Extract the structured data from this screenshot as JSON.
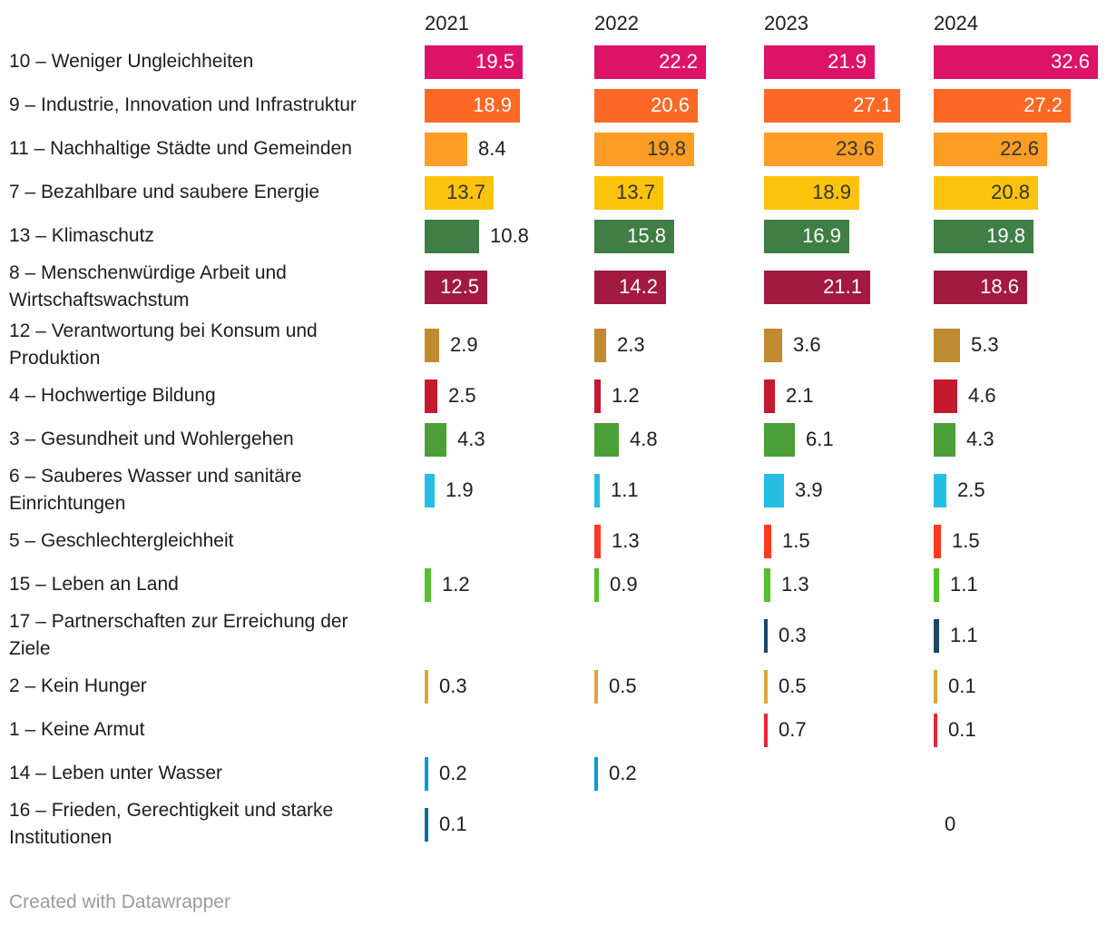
{
  "chart_data": {
    "type": "bar",
    "orientation": "horizontal",
    "title": "",
    "columns": [
      "2021",
      "2022",
      "2023",
      "2024"
    ],
    "value_axis_max": 33,
    "grid": false,
    "legend": "none",
    "rows": [
      {
        "label": "10 – Weniger Ungleichheiten",
        "color": "#DD1367",
        "inside_label_color": "#ffffff",
        "values": [
          19.5,
          22.2,
          21.9,
          32.6
        ]
      },
      {
        "label": "9 – Industrie, Innovation und Infrastruktur",
        "color": "#FD6925",
        "inside_label_color": "#ffffff",
        "values": [
          18.9,
          20.6,
          27.1,
          27.2
        ]
      },
      {
        "label": "11 – Nachhaltige Städte und Gemeinden",
        "color": "#FD9D24",
        "inside_label_color": "#333333",
        "values": [
          8.4,
          19.8,
          23.6,
          22.6
        ]
      },
      {
        "label": "7 – Bezahlbare und saubere Energie",
        "color": "#FCC30B",
        "inside_label_color": "#333333",
        "values": [
          13.7,
          13.7,
          18.9,
          20.8
        ]
      },
      {
        "label": "13 – Klimaschutz",
        "color": "#3F7E44",
        "inside_label_color": "#ffffff",
        "values": [
          10.8,
          15.8,
          16.9,
          19.8
        ]
      },
      {
        "label": "8 – Menschenwürdige Arbeit und\nWirtschaftswachstum",
        "color": "#A21942",
        "inside_label_color": "#ffffff",
        "values": [
          12.5,
          14.2,
          21.1,
          18.6
        ]
      },
      {
        "label": "12 – Verantwortung bei Konsum und\nProduktion",
        "color": "#BF8B2E",
        "inside_label_color": "#ffffff",
        "values": [
          2.9,
          2.3,
          3.6,
          5.3
        ]
      },
      {
        "label": "4 – Hochwertige Bildung",
        "color": "#C5192D",
        "inside_label_color": "#ffffff",
        "values": [
          2.5,
          1.2,
          2.1,
          4.6
        ]
      },
      {
        "label": "3 – Gesundheit und Wohlergehen",
        "color": "#4C9F38",
        "inside_label_color": "#ffffff",
        "values": [
          4.3,
          4.8,
          6.1,
          4.3
        ]
      },
      {
        "label": "6 – Sauberes Wasser und sanitäre\nEinrichtungen",
        "color": "#26BDE2",
        "inside_label_color": "#ffffff",
        "values": [
          1.9,
          1.1,
          3.9,
          2.5
        ]
      },
      {
        "label": "5 – Geschlechtergleichheit",
        "color": "#FF3A21",
        "inside_label_color": "#ffffff",
        "values": [
          null,
          1.3,
          1.5,
          1.5
        ]
      },
      {
        "label": "15 – Leben an Land",
        "color": "#56C02B",
        "inside_label_color": "#ffffff",
        "values": [
          1.2,
          0.9,
          1.3,
          1.1
        ]
      },
      {
        "label": "17 – Partnerschaften zur Erreichung der\nZiele",
        "color": "#19486A",
        "inside_label_color": "#ffffff",
        "values": [
          null,
          null,
          0.3,
          1.1
        ]
      },
      {
        "label": "2 – Kein Hunger",
        "color": "#DDA63A",
        "inside_label_color": "#ffffff",
        "values": [
          0.3,
          0.5,
          0.5,
          0.1
        ]
      },
      {
        "label": "1 – Keine Armut",
        "color": "#E5243B",
        "inside_label_color": "#ffffff",
        "values": [
          null,
          null,
          0.7,
          0.1
        ]
      },
      {
        "label": "14 – Leben unter Wasser",
        "color": "#0A97D9",
        "inside_label_color": "#ffffff",
        "values": [
          0.2,
          0.2,
          null,
          null
        ]
      },
      {
        "label": "16 – Frieden, Gerechtigkeit und starke\nInstitutionen",
        "color": "#00689D",
        "inside_label_color": "#ffffff",
        "values": [
          0.1,
          null,
          null,
          0
        ]
      }
    ]
  },
  "footer": {
    "attribution": "Created with Datawrapper"
  },
  "colors": {
    "text": "#1d1d1d",
    "muted_text": "#9b9b9b",
    "background": "#ffffff"
  }
}
